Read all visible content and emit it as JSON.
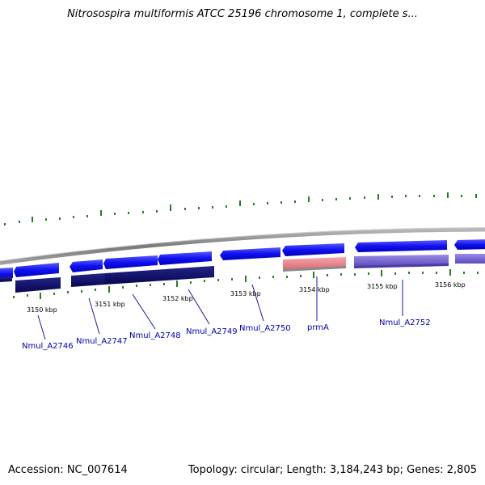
{
  "title": "Nitrosospira multiformis ATCC 25196 chromosome 1, complete s...",
  "footer": {
    "accession": "Accession: NC_007614",
    "topology": "Topology: circular; Length: 3,184,243 bp; Genes: 2,805"
  },
  "colors": {
    "forward_gene": "#0a0aee",
    "forward_gene_light": "#6a6aff",
    "reverse_cds": "#0b0b6e",
    "rrna_gene": "#e87f86",
    "purple_cds": "#7b68d8",
    "backbone": "#8a8a8a",
    "gc_tick": "#2a7a2a",
    "label": "#0000aa"
  },
  "scale_labels": [
    "3150 kbp",
    "3151 kbp",
    "3152 kbp",
    "3153 kbp",
    "3154 kbp",
    "3155 kbp",
    "3156 kbp"
  ],
  "genes": [
    {
      "label": "Nmul_A2746"
    },
    {
      "label": "Nmul_A2747"
    },
    {
      "label": "Nmul_A2748"
    },
    {
      "label": "Nmul_A2749"
    },
    {
      "label": "Nmul_A2750"
    },
    {
      "label": "prmA"
    },
    {
      "label": "Nmul_A2752"
    }
  ]
}
